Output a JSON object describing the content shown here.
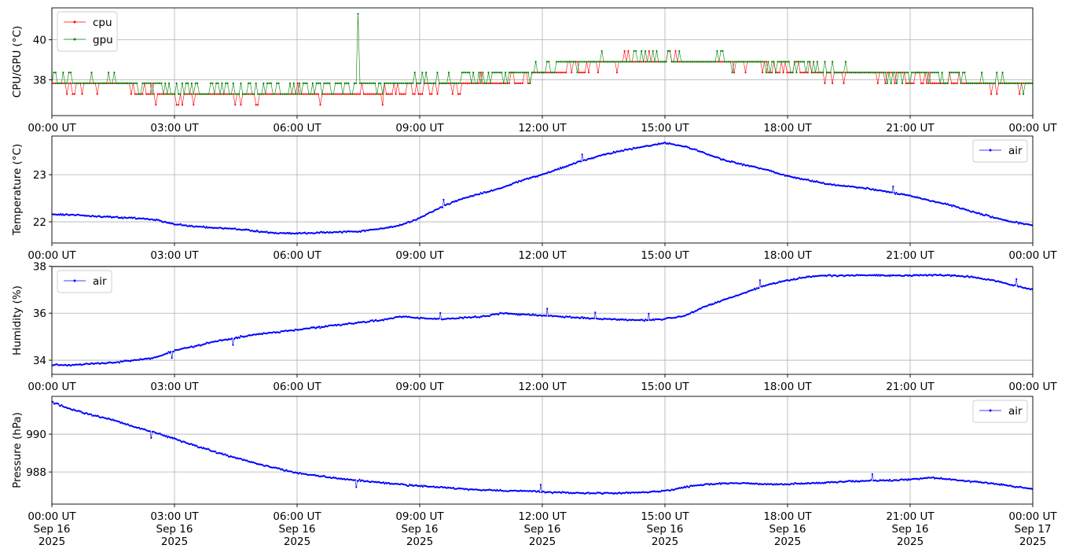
{
  "figure": {
    "tz_label": "UT",
    "colors": {
      "cpu": "#ff0000",
      "gpu": "#008000",
      "air": "#0000ff",
      "grid": "#b0b0b0",
      "axis": "#000000"
    }
  },
  "chart_data": [
    {
      "type": "line",
      "ylabel": "CPU/GPU (°C)",
      "ylim": [
        36.2,
        41.6
      ],
      "yticks": [
        38,
        40
      ],
      "ytick_labels": [
        "38",
        "40"
      ],
      "x_time_range": [
        "2025-09-16T00:00Z",
        "2025-09-17T00:00Z"
      ],
      "xtick_labels": [
        "00:00 UT",
        "03:00 UT",
        "06:00 UT",
        "09:00 UT",
        "12:00 UT",
        "15:00 UT",
        "18:00 UT",
        "21:00 UT",
        "00:00 UT"
      ],
      "grid": true,
      "legend": {
        "location": "upper left",
        "entries": [
          "cpu",
          "gpu"
        ]
      },
      "series": [
        {
          "name": "cpu",
          "color": "#ff0000",
          "marker": "dot",
          "quantized_step": 0.54,
          "x": [
            "00:00",
            "00:30",
            "01:00",
            "01:30",
            "02:00",
            "02:30",
            "03:00",
            "03:30",
            "04:00",
            "04:30",
            "05:00",
            "05:30",
            "06:00",
            "06:30",
            "07:00",
            "07:30",
            "08:00",
            "08:30",
            "09:00",
            "09:30",
            "10:00",
            "10:30",
            "11:00",
            "11:30",
            "12:00",
            "12:30",
            "13:00",
            "13:30",
            "14:00",
            "14:30",
            "15:00",
            "15:30",
            "16:00",
            "16:30",
            "17:00",
            "17:30",
            "18:00",
            "18:30",
            "19:00",
            "19:30",
            "20:00",
            "20:30",
            "21:00",
            "21:30",
            "22:00",
            "22:30",
            "23:00",
            "23:30",
            "24:00"
          ],
          "values": [
            37.7,
            37.6,
            37.6,
            37.8,
            37.5,
            37.3,
            37.1,
            37.1,
            37.2,
            37.1,
            37.1,
            37.2,
            37.2,
            37.2,
            37.2,
            37.4,
            37.3,
            37.4,
            37.6,
            37.6,
            37.7,
            37.8,
            37.8,
            38.0,
            38.3,
            38.5,
            38.6,
            38.8,
            38.9,
            39.0,
            39.0,
            38.9,
            38.9,
            38.8,
            38.7,
            38.6,
            38.5,
            38.4,
            38.3,
            38.2,
            38.2,
            38.1,
            38.0,
            38.0,
            37.9,
            37.9,
            37.8,
            37.7,
            37.7
          ]
        },
        {
          "name": "gpu",
          "color": "#008000",
          "marker": "dot",
          "quantized_step": 0.54,
          "x": [
            "00:00",
            "00:30",
            "01:00",
            "01:30",
            "02:00",
            "02:30",
            "03:00",
            "03:30",
            "04:00",
            "04:30",
            "05:00",
            "05:30",
            "06:00",
            "06:30",
            "07:00",
            "07:30",
            "08:00",
            "08:30",
            "09:00",
            "09:30",
            "10:00",
            "10:30",
            "11:00",
            "11:30",
            "12:00",
            "12:30",
            "13:00",
            "13:30",
            "14:00",
            "14:30",
            "15:00",
            "15:30",
            "16:00",
            "16:30",
            "17:00",
            "17:30",
            "18:00",
            "18:30",
            "19:00",
            "19:30",
            "20:00",
            "20:30",
            "21:00",
            "21:30",
            "22:00",
            "22:30",
            "23:00",
            "23:30",
            "24:00"
          ],
          "values": [
            38.0,
            37.9,
            37.9,
            38.0,
            37.8,
            37.6,
            37.5,
            37.5,
            37.5,
            37.5,
            37.5,
            37.5,
            37.5,
            37.6,
            37.6,
            37.7,
            37.7,
            37.8,
            37.9,
            38.0,
            38.0,
            38.1,
            38.1,
            38.3,
            38.5,
            38.7,
            38.8,
            38.9,
            39.0,
            39.1,
            39.1,
            39.0,
            39.0,
            38.9,
            38.8,
            38.7,
            38.7,
            38.6,
            38.5,
            38.4,
            38.3,
            38.3,
            38.2,
            38.2,
            38.1,
            38.0,
            38.0,
            37.9,
            37.9
          ],
          "spike": {
            "x": "07:30",
            "value": 41.3
          }
        }
      ]
    },
    {
      "type": "line",
      "ylabel": "Temperature (°C)",
      "ylim": [
        21.55,
        23.82
      ],
      "yticks": [
        22,
        23
      ],
      "ytick_labels": [
        "22",
        "23"
      ],
      "x_time_range": [
        "2025-09-16T00:00Z",
        "2025-09-17T00:00Z"
      ],
      "xtick_labels": [
        "00:00 UT",
        "03:00 UT",
        "06:00 UT",
        "09:00 UT",
        "12:00 UT",
        "15:00 UT",
        "18:00 UT",
        "21:00 UT",
        "00:00 UT"
      ],
      "grid": true,
      "legend": {
        "location": "upper right",
        "entries": [
          "air"
        ]
      },
      "series": [
        {
          "name": "air",
          "color": "#0000ff",
          "marker": "dot",
          "x": [
            "00:00",
            "00:30",
            "01:00",
            "01:30",
            "02:00",
            "02:30",
            "03:00",
            "03:30",
            "04:00",
            "04:30",
            "05:00",
            "05:30",
            "06:00",
            "06:30",
            "07:00",
            "07:30",
            "08:00",
            "08:30",
            "09:00",
            "09:30",
            "10:00",
            "10:30",
            "11:00",
            "11:30",
            "12:00",
            "12:30",
            "13:00",
            "13:30",
            "14:00",
            "14:30",
            "15:00",
            "15:30",
            "16:00",
            "16:30",
            "17:00",
            "17:30",
            "18:00",
            "18:30",
            "19:00",
            "19:30",
            "20:00",
            "20:30",
            "21:00",
            "21:30",
            "22:00",
            "22:30",
            "23:00",
            "23:30",
            "24:00"
          ],
          "values": [
            22.15,
            22.15,
            22.12,
            22.1,
            22.08,
            22.05,
            21.95,
            21.9,
            21.87,
            21.85,
            21.8,
            21.76,
            21.75,
            21.77,
            21.78,
            21.8,
            21.85,
            21.92,
            22.08,
            22.3,
            22.48,
            22.6,
            22.72,
            22.88,
            23.0,
            23.15,
            23.3,
            23.42,
            23.52,
            23.6,
            23.67,
            23.6,
            23.45,
            23.3,
            23.2,
            23.1,
            22.97,
            22.88,
            22.8,
            22.75,
            22.7,
            22.63,
            22.55,
            22.45,
            22.35,
            22.22,
            22.1,
            22.0,
            21.93
          ]
        }
      ]
    },
    {
      "type": "line",
      "ylabel": "Humidity (%)",
      "ylim": [
        33.4,
        37.98
      ],
      "yticks": [
        34,
        36,
        38
      ],
      "ytick_labels": [
        "34",
        "36",
        "38"
      ],
      "x_time_range": [
        "2025-09-16T00:00Z",
        "2025-09-17T00:00Z"
      ],
      "xtick_labels": [
        "00:00 UT",
        "03:00 UT",
        "06:00 UT",
        "09:00 UT",
        "12:00 UT",
        "15:00 UT",
        "18:00 UT",
        "21:00 UT",
        "00:00 UT"
      ],
      "grid": true,
      "legend": {
        "location": "upper left",
        "entries": [
          "air"
        ]
      },
      "series": [
        {
          "name": "air",
          "color": "#0000ff",
          "marker": "dot",
          "x": [
            "00:00",
            "00:30",
            "01:00",
            "01:30",
            "02:00",
            "02:30",
            "03:00",
            "03:30",
            "04:00",
            "04:30",
            "05:00",
            "05:30",
            "06:00",
            "06:30",
            "07:00",
            "07:30",
            "08:00",
            "08:30",
            "09:00",
            "09:30",
            "10:00",
            "10:30",
            "11:00",
            "11:30",
            "12:00",
            "12:30",
            "13:00",
            "13:30",
            "14:00",
            "14:30",
            "15:00",
            "15:30",
            "16:00",
            "16:30",
            "17:00",
            "17:30",
            "18:00",
            "18:30",
            "19:00",
            "19:30",
            "20:00",
            "20:30",
            "21:00",
            "21:30",
            "22:00",
            "22:30",
            "23:00",
            "23:30",
            "24:00"
          ],
          "values": [
            33.8,
            33.8,
            33.85,
            33.9,
            34.0,
            34.1,
            34.4,
            34.6,
            34.8,
            34.95,
            35.1,
            35.2,
            35.3,
            35.4,
            35.5,
            35.6,
            35.7,
            35.85,
            35.8,
            35.75,
            35.8,
            35.85,
            36.0,
            35.95,
            35.9,
            35.85,
            35.8,
            35.75,
            35.72,
            35.7,
            35.75,
            35.9,
            36.3,
            36.6,
            36.9,
            37.2,
            37.4,
            37.55,
            37.6,
            37.6,
            37.62,
            37.6,
            37.6,
            37.62,
            37.6,
            37.55,
            37.4,
            37.2,
            37.0
          ]
        }
      ]
    },
    {
      "type": "line",
      "ylabel": "Pressure (hPa)",
      "ylim": [
        986.3,
        992.0
      ],
      "yticks": [
        988,
        990
      ],
      "ytick_labels": [
        "988",
        "990"
      ],
      "x_time_range": [
        "2025-09-16T00:00Z",
        "2025-09-17T00:00Z"
      ],
      "xtick_labels": [
        "00:00 UT\nSep 16\n2025",
        "03:00 UT\nSep 16\n2025",
        "06:00 UT\nSep 16\n2025",
        "09:00 UT\nSep 16\n2025",
        "12:00 UT\nSep 16\n2025",
        "15:00 UT\nSep 16\n2025",
        "18:00 UT\nSep 16\n2025",
        "21:00 UT\nSep 16\n2025",
        "00:00 UT\nSep 17\n2025"
      ],
      "grid": true,
      "legend": {
        "location": "upper right",
        "entries": [
          "air"
        ]
      },
      "series": [
        {
          "name": "air",
          "color": "#0000ff",
          "marker": "dot",
          "x": [
            "00:00",
            "00:30",
            "01:00",
            "01:30",
            "02:00",
            "02:30",
            "03:00",
            "03:30",
            "04:00",
            "04:30",
            "05:00",
            "05:30",
            "06:00",
            "06:30",
            "07:00",
            "07:30",
            "08:00",
            "08:30",
            "09:00",
            "09:30",
            "10:00",
            "10:30",
            "11:00",
            "11:30",
            "12:00",
            "12:30",
            "13:00",
            "13:30",
            "14:00",
            "14:30",
            "15:00",
            "15:30",
            "16:00",
            "16:30",
            "17:00",
            "17:30",
            "18:00",
            "18:30",
            "19:00",
            "19:30",
            "20:00",
            "20:30",
            "21:00",
            "21:30",
            "22:00",
            "22:30",
            "23:00",
            "23:30",
            "24:00"
          ],
          "values": [
            991.7,
            991.3,
            991.0,
            990.75,
            990.4,
            990.1,
            989.75,
            989.4,
            989.05,
            988.75,
            988.45,
            988.2,
            987.95,
            987.8,
            987.65,
            987.55,
            987.45,
            987.35,
            987.25,
            987.2,
            987.1,
            987.05,
            987.0,
            987.0,
            986.95,
            986.9,
            986.88,
            986.87,
            986.88,
            986.92,
            987.0,
            987.2,
            987.35,
            987.4,
            987.4,
            987.35,
            987.35,
            987.4,
            987.45,
            987.5,
            987.55,
            987.55,
            987.6,
            987.7,
            987.6,
            987.5,
            987.4,
            987.25,
            987.1
          ]
        }
      ]
    }
  ]
}
